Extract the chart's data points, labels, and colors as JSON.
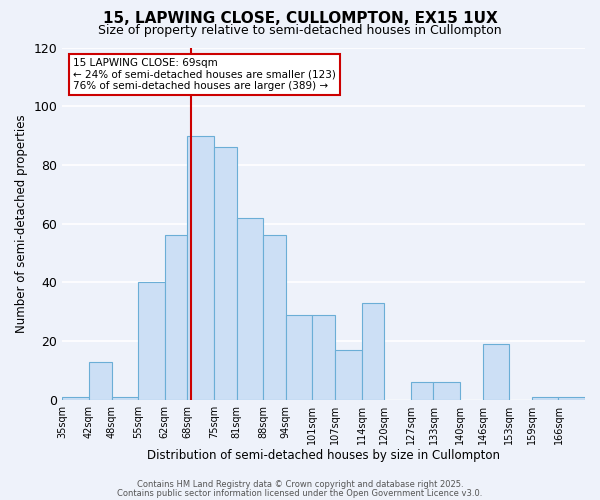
{
  "title": "15, LAPWING CLOSE, CULLOMPTON, EX15 1UX",
  "subtitle": "Size of property relative to semi-detached houses in Cullompton",
  "xlabel": "Distribution of semi-detached houses by size in Cullompton",
  "ylabel": "Number of semi-detached properties",
  "footer_line1": "Contains HM Land Registry data © Crown copyright and database right 2025.",
  "footer_line2": "Contains public sector information licensed under the Open Government Licence v3.0.",
  "bin_labels": [
    "35sqm",
    "42sqm",
    "48sqm",
    "55sqm",
    "62sqm",
    "68sqm",
    "75sqm",
    "81sqm",
    "88sqm",
    "94sqm",
    "101sqm",
    "107sqm",
    "114sqm",
    "120sqm",
    "127sqm",
    "133sqm",
    "140sqm",
    "146sqm",
    "153sqm",
    "159sqm",
    "166sqm"
  ],
  "bin_edges": [
    35,
    42,
    48,
    55,
    62,
    68,
    75,
    81,
    88,
    94,
    101,
    107,
    114,
    120,
    127,
    133,
    140,
    146,
    153,
    159,
    166
  ],
  "bar_heights": [
    1,
    13,
    1,
    40,
    56,
    90,
    86,
    62,
    56,
    29,
    29,
    17,
    33,
    0,
    6,
    6,
    0,
    19,
    0,
    1,
    1
  ],
  "bar_color": "#ccdff5",
  "bar_edge_color": "#6baed6",
  "property_value": 69,
  "vline_color": "#cc0000",
  "annotation_title": "15 LAPWING CLOSE: 69sqm",
  "annotation_line2": "← 24% of semi-detached houses are smaller (123)",
  "annotation_line3": "76% of semi-detached houses are larger (389) →",
  "annotation_box_facecolor": "#ffffff",
  "annotation_box_edgecolor": "#cc0000",
  "ylim": [
    0,
    120
  ],
  "yticks": [
    0,
    20,
    40,
    60,
    80,
    100,
    120
  ],
  "bg_color": "#eef2fa",
  "plot_bg_color": "#eef2fa",
  "grid_color": "#ffffff",
  "title_fontsize": 11,
  "subtitle_fontsize": 9,
  "ylabel_text": "Number of semi-detached properties"
}
